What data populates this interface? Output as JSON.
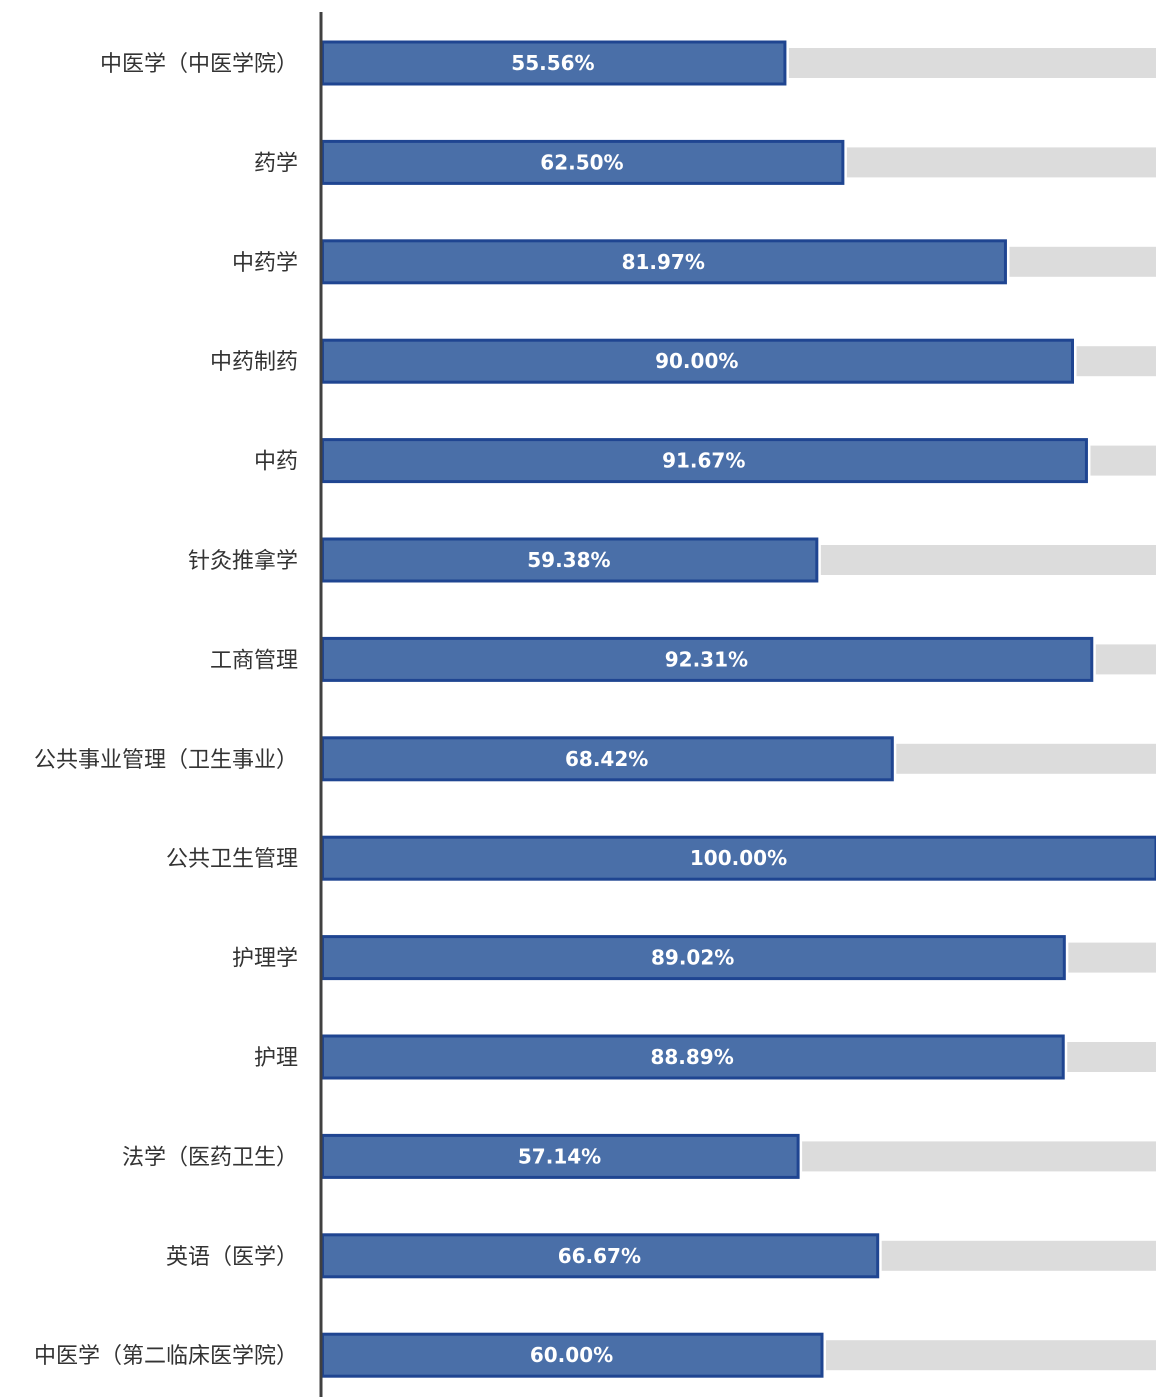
{
  "chart_data": {
    "type": "bar",
    "orientation": "horizontal",
    "categories": [
      "中医学（中医学院）",
      "药学",
      "中药学",
      "中药制药",
      "中药",
      "针灸推拿学",
      "工商管理",
      "公共事业管理（卫生事业）",
      "公共卫生管理",
      "护理学",
      "护理",
      "法学（医药卫生）",
      "英语（医学）",
      "中医学（第二临床医学院）"
    ],
    "values": [
      55.56,
      62.5,
      81.97,
      90.0,
      91.67,
      59.38,
      92.31,
      68.42,
      100.0,
      89.02,
      88.89,
      57.14,
      66.67,
      60.0
    ],
    "value_labels": [
      "55.56%",
      "62.50%",
      "81.97%",
      "90.00%",
      "91.67%",
      "59.38%",
      "92.31%",
      "68.42%",
      "100.00%",
      "89.02%",
      "88.89%",
      "57.14%",
      "66.67%",
      "60.00%"
    ],
    "xlim": [
      0,
      100
    ],
    "show_remainder_track": true,
    "grid": false,
    "legend": "none",
    "colors": {
      "bar": "#4a6fa8",
      "bar_border": "#1f4591",
      "track": "#dcdcdc",
      "axis": "#404040"
    }
  }
}
